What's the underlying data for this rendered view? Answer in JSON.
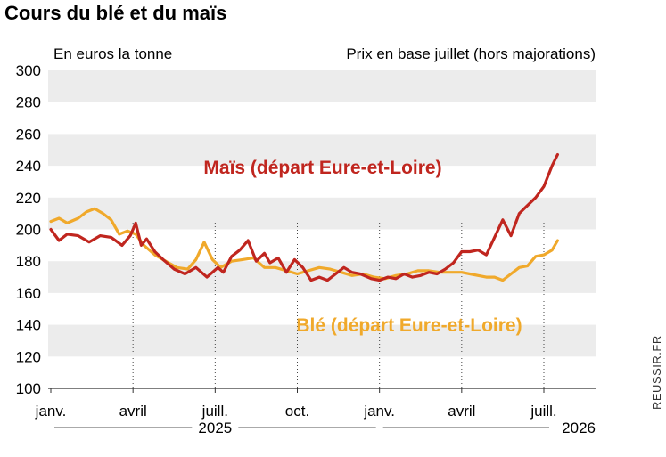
{
  "chart_data": {
    "type": "line",
    "title": "Cours du blé et du maïs",
    "subtitle_left": "En euros la tonne",
    "subtitle_right": "Prix en base juillet (hors majorations)",
    "ylim": [
      100,
      300
    ],
    "yticks": [
      100,
      120,
      140,
      160,
      180,
      200,
      220,
      240,
      260,
      280,
      300
    ],
    "x_unit": "months since January 2025",
    "xlim": [
      0,
      18.5
    ],
    "x_ticks": [
      {
        "label": "janv.",
        "x": 0
      },
      {
        "label": "avril",
        "x": 3
      },
      {
        "label": "juill.",
        "x": 6
      },
      {
        "label": "oct.",
        "x": 9
      },
      {
        "label": "janv.",
        "x": 12
      },
      {
        "label": "avril",
        "x": 15
      },
      {
        "label": "juill.",
        "x": 18
      }
    ],
    "years": [
      {
        "label": "2025",
        "from": 0,
        "to": 12
      },
      {
        "label": "2026",
        "from": 12,
        "to": 20
      }
    ],
    "series": [
      {
        "name": "Maïs (départ Eure-et-Loire)",
        "color": "#c0261f",
        "x": [
          0,
          0.3,
          0.6,
          1.0,
          1.4,
          1.8,
          2.2,
          2.6,
          2.9,
          3.1,
          3.3,
          3.5,
          3.8,
          4.1,
          4.5,
          4.9,
          5.3,
          5.7,
          6.1,
          6.3,
          6.6,
          6.9,
          7.2,
          7.5,
          7.8,
          8.0,
          8.3,
          8.6,
          8.9,
          9.2,
          9.5,
          9.8,
          10.1,
          10.4,
          10.7,
          11.0,
          11.3,
          11.7,
          12.0,
          12.3,
          12.6,
          12.9,
          13.2,
          13.5,
          13.8,
          14.1,
          14.4,
          14.7,
          15.0,
          15.3,
          15.6,
          15.9,
          16.2,
          16.5,
          16.8,
          17.1,
          17.4,
          17.7,
          18.0,
          18.3,
          18.5
        ],
        "values": [
          200,
          193,
          197,
          196,
          192,
          196,
          195,
          190,
          196,
          204,
          190,
          194,
          186,
          181,
          175,
          172,
          176,
          170,
          176,
          173,
          183,
          187,
          193,
          180,
          185,
          179,
          182,
          173,
          181,
          176,
          168,
          170,
          168,
          172,
          176,
          173,
          172,
          169,
          168,
          170,
          169,
          172,
          170,
          171,
          173,
          172,
          175,
          179,
          186,
          186,
          187,
          184,
          195,
          206,
          196,
          210,
          215,
          220,
          227,
          240,
          247
        ]
      },
      {
        "name": "Blé (départ Eure-et-Loire)",
        "color": "#f0a92b",
        "x": [
          0,
          0.3,
          0.6,
          1.0,
          1.3,
          1.6,
          1.9,
          2.2,
          2.5,
          2.8,
          3.1,
          3.4,
          3.8,
          4.2,
          4.6,
          5.0,
          5.3,
          5.6,
          5.9,
          6.2,
          6.6,
          7.0,
          7.4,
          7.8,
          8.2,
          8.6,
          9.0,
          9.4,
          9.8,
          10.2,
          10.6,
          11.0,
          11.4,
          11.8,
          12.2,
          12.6,
          13.0,
          13.4,
          13.8,
          14.2,
          14.6,
          15.0,
          15.3,
          15.6,
          15.9,
          16.2,
          16.5,
          16.8,
          17.1,
          17.4,
          17.7,
          18.0,
          18.3,
          18.5
        ],
        "values": [
          205,
          207,
          204,
          207,
          211,
          213,
          210,
          206,
          197,
          199,
          197,
          190,
          184,
          180,
          176,
          175,
          181,
          192,
          181,
          176,
          180,
          181,
          182,
          176,
          176,
          174,
          172,
          174,
          176,
          175,
          173,
          171,
          172,
          170,
          169,
          171,
          172,
          174,
          174,
          173,
          173,
          173,
          172,
          171,
          170,
          170,
          168,
          172,
          176,
          177,
          183,
          184,
          187,
          193
        ]
      }
    ],
    "annotations": [
      {
        "text": "Maïs (départ Eure-et-Loire)",
        "series": 0
      },
      {
        "text": "Blé (départ Eure-et-Loire)",
        "series": 1
      }
    ],
    "grid": true,
    "legend": "inline labels"
  },
  "credit": "REUSSIR.FR"
}
